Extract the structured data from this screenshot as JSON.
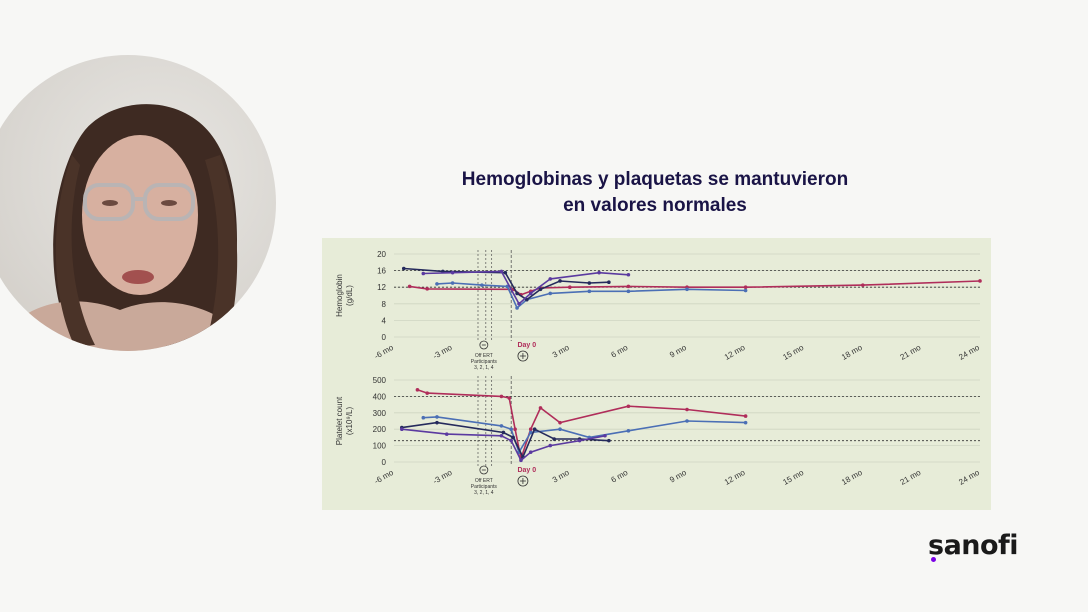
{
  "slide": {
    "title_line1": "Hemoglobinas y plaquetas se mantuvieron",
    "title_line2": "en valores normales"
  },
  "logo": {
    "text": "sanofi",
    "accent_color": "#7a00e6"
  },
  "colors": {
    "title": "#1a1446",
    "chart_bg": "#e7ecd8",
    "series": [
      "#b02d5a",
      "#4b6fb5",
      "#252a5c",
      "#5b3aa0"
    ]
  },
  "chart_data": [
    {
      "type": "line",
      "ylabel": "Hemoglobin\n(g/dL)",
      "yticks": [
        0,
        4,
        8,
        12,
        16,
        20
      ],
      "ylim": [
        0,
        20
      ],
      "xlim": [
        -6,
        24
      ],
      "xticks": [
        "-6 mo",
        "-3 mo",
        "Day 0",
        "3 mo",
        "6 mo",
        "9 mo",
        "12 mo",
        "15 mo",
        "18 mo",
        "21 mo",
        "24 mo"
      ],
      "xtick_values": [
        -6,
        -3,
        0,
        3,
        6,
        9,
        12,
        15,
        18,
        21,
        24
      ],
      "reference_lines": [
        16,
        12
      ],
      "annotations": [
        "Off ERT",
        "Participants",
        "3, 2, 1, 4",
        "Day 0"
      ],
      "series": [
        {
          "x": [
            -5.2,
            -4.3,
            0.1,
            0.5,
            1.0,
            1.5,
            3,
            6,
            9,
            12,
            18,
            24
          ],
          "y": [
            12.2,
            11.6,
            11.5,
            10.2,
            11.0,
            11.8,
            12.0,
            12.2,
            12.0,
            12.0,
            12.5,
            13.5
          ]
        },
        {
          "x": [
            -3.8,
            -3.0,
            -1.5,
            -0.2,
            0.3,
            0.8,
            2,
            4,
            6,
            9,
            12
          ],
          "y": [
            12.8,
            13.0,
            12.5,
            12.2,
            7.0,
            9.0,
            10.5,
            11.0,
            11.0,
            11.5,
            11.2
          ]
        },
        {
          "x": [
            -5.5,
            -3.5,
            -0.3,
            0.3,
            0.8,
            1.5,
            2.5,
            4,
            5
          ],
          "y": [
            16.5,
            15.8,
            15.5,
            10.5,
            9.0,
            11.5,
            13.5,
            13.0,
            13.2
          ]
        },
        {
          "x": [
            -4.5,
            -3.0,
            -0.5,
            0.4,
            1.0,
            2.0,
            4.5,
            6
          ],
          "y": [
            15.3,
            15.5,
            15.8,
            8.0,
            10.5,
            14.0,
            15.5,
            15.0
          ]
        }
      ]
    },
    {
      "type": "line",
      "ylabel": "Platelet count\n(x10⁹/L)",
      "yticks": [
        0,
        100,
        200,
        300,
        400,
        500
      ],
      "ylim": [
        0,
        500
      ],
      "xlim": [
        -6,
        24
      ],
      "xticks": [
        "-6 mo",
        "-3 mo",
        "Day 0",
        "3 mo",
        "6 mo",
        "9 mo",
        "12 mo",
        "15 mo",
        "18 mo",
        "21 mo",
        "24 mo"
      ],
      "xtick_values": [
        -6,
        -3,
        0,
        3,
        6,
        9,
        12,
        15,
        18,
        21,
        24
      ],
      "reference_lines": [
        400,
        130
      ],
      "annotations": [
        "Off ERT",
        "Participants",
        "3, 2, 1, 4",
        "Day 0"
      ],
      "series": [
        {
          "x": [
            -4.8,
            -4.3,
            -0.5,
            -0.1,
            0.2,
            0.5,
            1.0,
            1.5,
            2.5,
            6,
            9,
            12
          ],
          "y": [
            440,
            420,
            400,
            390,
            200,
            20,
            200,
            330,
            240,
            340,
            320,
            280
          ]
        },
        {
          "x": [
            -4.5,
            -3.8,
            -0.5,
            0.0,
            0.4,
            1.0,
            2.5,
            4,
            6,
            9,
            12
          ],
          "y": [
            270,
            275,
            220,
            200,
            60,
            180,
            200,
            150,
            190,
            250,
            240
          ]
        },
        {
          "x": [
            -5.6,
            -3.8,
            -0.4,
            0.1,
            0.6,
            1.2,
            2.2,
            3.5,
            5.0
          ],
          "y": [
            210,
            240,
            180,
            150,
            30,
            200,
            140,
            140,
            130
          ]
        },
        {
          "x": [
            -5.6,
            -3.3,
            -0.5,
            0.0,
            0.5,
            1.0,
            2.0,
            3.5,
            4.8
          ],
          "y": [
            200,
            170,
            160,
            130,
            10,
            60,
            100,
            130,
            160
          ]
        }
      ]
    }
  ]
}
